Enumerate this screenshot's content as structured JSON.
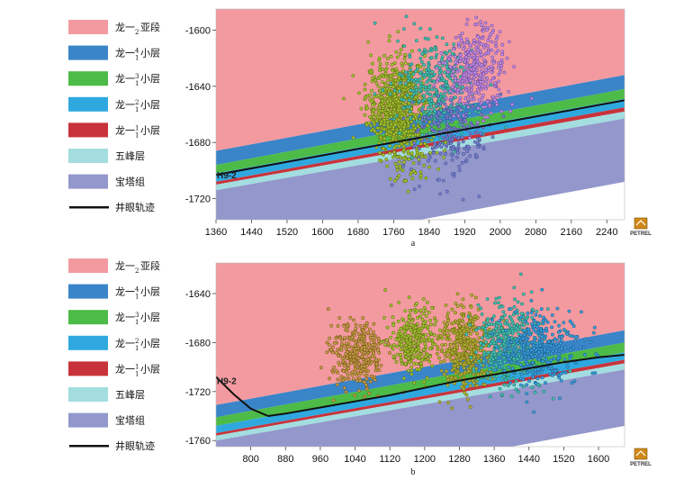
{
  "chart_data": [
    {
      "type": "scatter",
      "subplot_label": "a",
      "well_label": "H9-2",
      "logo_label": "PETREL",
      "xlim": [
        1360,
        2280
      ],
      "ylim": [
        -1735,
        -1585
      ],
      "xticks": [
        1360,
        1440,
        1520,
        1600,
        1680,
        1760,
        1840,
        1920,
        2000,
        2080,
        2160,
        2240
      ],
      "yticks": [
        -1600,
        -1640,
        -1680,
        -1720
      ],
      "legend": [
        {
          "name": "龙一₂亚段",
          "color": "#f39aa0"
        },
        {
          "name": "龙一₁⁴小层",
          "color": "#3a84c8"
        },
        {
          "name": "龙一₁³小层",
          "color": "#4cbb47"
        },
        {
          "name": "龙一₁²小层",
          "color": "#2fa8e0"
        },
        {
          "name": "龙一₁¹小层",
          "color": "#c8333b"
        },
        {
          "name": "五峰层",
          "color": "#a3dde0"
        },
        {
          "name": "宝塔组",
          "color": "#9397cb"
        },
        {
          "name": "井眼轨迹",
          "color": "#111111"
        }
      ],
      "layers": [
        {
          "name": "龙一₂亚段",
          "color": "#f39aa0",
          "top": [
            -1585,
            -1585
          ],
          "bottom": [
            -1686,
            -1632
          ]
        },
        {
          "name": "龙一₁⁴小层",
          "color": "#3a84c8",
          "top": [
            -1686,
            -1632
          ],
          "bottom": [
            -1696,
            -1642
          ]
        },
        {
          "name": "龙一₁³小层",
          "color": "#4cbb47",
          "top": [
            -1696,
            -1642
          ],
          "bottom": [
            -1702,
            -1649
          ]
        },
        {
          "name": "龙一₁²小层",
          "color": "#2fa8e0",
          "top": [
            -1702,
            -1649
          ],
          "bottom": [
            -1708,
            -1655
          ]
        },
        {
          "name": "龙一₁¹小层",
          "color": "#c8333b",
          "top": [
            -1708,
            -1655
          ],
          "bottom": [
            -1710,
            -1658
          ]
        },
        {
          "name": "五峰层",
          "color": "#a3dde0",
          "top": [
            -1710,
            -1658
          ],
          "bottom": [
            -1714,
            -1663
          ]
        },
        {
          "name": "宝塔组",
          "color": "#9397cb",
          "top": [
            -1714,
            -1663
          ],
          "bottom": [
            -1735,
            -1735
          ]
        }
      ],
      "white_region": [
        [
          1820,
          -1735
        ],
        [
          2280,
          -1708
        ],
        [
          2280,
          -1735
        ]
      ],
      "trajectory": {
        "x": [
          1360,
          2280
        ],
        "y": [
          -1703,
          -1650
        ]
      },
      "clusters": [
        {
          "cx": 1770,
          "cy": -1655,
          "sx": 35,
          "sy": 17,
          "n": 780,
          "fill": "#a9c535",
          "stroke": "#5f7412"
        },
        {
          "cx": 1860,
          "cy": -1640,
          "sx": 45,
          "sy": 17,
          "n": 380,
          "fill": "#46c2b4",
          "stroke": "#23796f"
        },
        {
          "cx": 1945,
          "cy": -1628,
          "sx": 35,
          "sy": 15,
          "n": 360,
          "fill": "#c08fe0",
          "stroke": "#7a4ea0"
        },
        {
          "cx": 1890,
          "cy": -1675,
          "sx": 45,
          "sy": 15,
          "n": 220,
          "fill": "#7b86c9",
          "stroke": "#434e97"
        },
        {
          "cx": 1800,
          "cy": -1690,
          "sx": 30,
          "sy": 10,
          "n": 60,
          "fill": "#a9c535",
          "stroke": "#5f7412"
        }
      ]
    },
    {
      "type": "scatter",
      "subplot_label": "b",
      "well_label": "H9-2",
      "logo_label": "PETREL",
      "xlim": [
        720,
        1660
      ],
      "ylim": [
        -1765,
        -1615
      ],
      "xticks": [
        800,
        880,
        960,
        1040,
        1120,
        1200,
        1280,
        1360,
        1440,
        1520,
        1600
      ],
      "yticks": [
        -1640,
        -1680,
        -1720,
        -1760
      ],
      "legend": [
        {
          "name": "龙一₂亚段",
          "color": "#f39aa0"
        },
        {
          "name": "龙一₁⁴小层",
          "color": "#3a84c8"
        },
        {
          "name": "龙一₁³小层",
          "color": "#4cbb47"
        },
        {
          "name": "龙一₁²小层",
          "color": "#2fa8e0"
        },
        {
          "name": "龙一₁¹小层",
          "color": "#c8333b"
        },
        {
          "name": "五峰层",
          "color": "#a3dde0"
        },
        {
          "name": "宝塔组",
          "color": "#9397cb"
        },
        {
          "name": "井眼轨迹",
          "color": "#111111"
        }
      ],
      "layers": [
        {
          "name": "龙一₂亚段",
          "color": "#f39aa0",
          "top": [
            -1615,
            -1615
          ],
          "bottom": [
            -1731,
            -1670
          ]
        },
        {
          "name": "龙一₁⁴小层",
          "color": "#3a84c8",
          "top": [
            -1731,
            -1670
          ],
          "bottom": [
            -1741,
            -1680
          ]
        },
        {
          "name": "龙一₁³小层",
          "color": "#4cbb47",
          "top": [
            -1741,
            -1680
          ],
          "bottom": [
            -1748,
            -1688
          ]
        },
        {
          "name": "龙一₁²小层",
          "color": "#2fa8e0",
          "top": [
            -1748,
            -1688
          ],
          "bottom": [
            -1754,
            -1694
          ]
        },
        {
          "name": "龙一₁¹小层",
          "color": "#c8333b",
          "top": [
            -1754,
            -1694
          ],
          "bottom": [
            -1756,
            -1697
          ]
        },
        {
          "name": "五峰层",
          "color": "#a3dde0",
          "top": [
            -1756,
            -1697
          ],
          "bottom": [
            -1760,
            -1702
          ]
        },
        {
          "name": "宝塔组",
          "color": "#9397cb",
          "top": [
            -1760,
            -1702
          ],
          "bottom": [
            -1765,
            -1765
          ]
        }
      ],
      "white_region": [
        [
          1400,
          -1765
        ],
        [
          1660,
          -1748
        ],
        [
          1660,
          -1765
        ]
      ],
      "trajectory": {
        "x": [
          720,
          760,
          800,
          840,
          880,
          960,
          1040,
          1120,
          1200,
          1280,
          1360,
          1440,
          1520,
          1600,
          1660
        ],
        "y": [
          -1708,
          -1722,
          -1734,
          -1740,
          -1738,
          -1733,
          -1728,
          -1723,
          -1717,
          -1711,
          -1706,
          -1701,
          -1696,
          -1692,
          -1690
        ]
      },
      "clusters": [
        {
          "cx": 1045,
          "cy": -1690,
          "sx": 30,
          "sy": 13,
          "n": 330,
          "fill": "#c9a04a",
          "stroke": "#7a5a1a"
        },
        {
          "cx": 1175,
          "cy": -1680,
          "sx": 25,
          "sy": 15,
          "n": 300,
          "fill": "#a9c535",
          "stroke": "#5f7412"
        },
        {
          "cx": 1290,
          "cy": -1685,
          "sx": 32,
          "sy": 17,
          "n": 420,
          "fill": "#b6b23a",
          "stroke": "#6f6c12"
        },
        {
          "cx": 1390,
          "cy": -1680,
          "sx": 40,
          "sy": 17,
          "n": 420,
          "fill": "#46c2b4",
          "stroke": "#23796f"
        },
        {
          "cx": 1470,
          "cy": -1685,
          "sx": 45,
          "sy": 15,
          "n": 360,
          "fill": "#3aa3e0",
          "stroke": "#1f5f8f"
        }
      ]
    }
  ]
}
